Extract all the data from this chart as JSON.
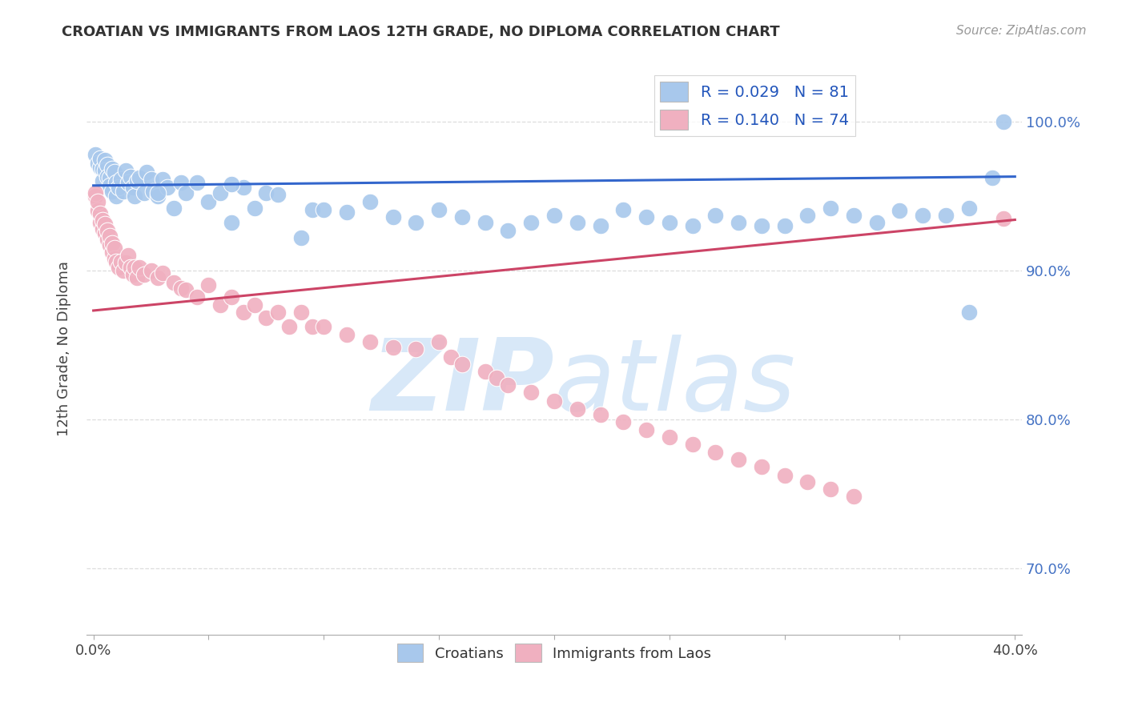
{
  "title": "CROATIAN VS IMMIGRANTS FROM LAOS 12TH GRADE, NO DIPLOMA CORRELATION CHART",
  "source": "Source: ZipAtlas.com",
  "ylabel": "12th Grade, No Diploma",
  "yticks": [
    "100.0%",
    "90.0%",
    "80.0%",
    "70.0%"
  ],
  "ytick_vals": [
    1.0,
    0.9,
    0.8,
    0.7
  ],
  "legend_blue_r": "R = 0.029",
  "legend_blue_n": "N = 81",
  "legend_pink_r": "R = 0.140",
  "legend_pink_n": "N = 74",
  "blue_color": "#A8C8EC",
  "pink_color": "#F0B0C0",
  "line_blue_color": "#3366CC",
  "line_pink_color": "#CC4466",
  "watermark_zip": "ZIP",
  "watermark_atlas": "atlas",
  "watermark_color": "#D8E8F8",
  "blue_scatter_x": [
    0.001,
    0.002,
    0.003,
    0.003,
    0.004,
    0.004,
    0.005,
    0.005,
    0.006,
    0.006,
    0.007,
    0.007,
    0.008,
    0.008,
    0.009,
    0.01,
    0.01,
    0.011,
    0.012,
    0.013,
    0.014,
    0.015,
    0.016,
    0.017,
    0.018,
    0.019,
    0.02,
    0.022,
    0.023,
    0.025,
    0.026,
    0.028,
    0.03,
    0.032,
    0.035,
    0.038,
    0.04,
    0.045,
    0.05,
    0.055,
    0.06,
    0.065,
    0.07,
    0.075,
    0.08,
    0.09,
    0.095,
    0.1,
    0.11,
    0.12,
    0.13,
    0.14,
    0.15,
    0.16,
    0.17,
    0.18,
    0.19,
    0.2,
    0.21,
    0.22,
    0.23,
    0.24,
    0.25,
    0.26,
    0.27,
    0.28,
    0.29,
    0.3,
    0.31,
    0.32,
    0.33,
    0.34,
    0.35,
    0.36,
    0.37,
    0.38,
    0.39,
    0.395,
    0.028,
    0.06,
    0.38
  ],
  "blue_scatter_y": [
    0.978,
    0.972,
    0.969,
    0.975,
    0.968,
    0.96,
    0.974,
    0.967,
    0.971,
    0.963,
    0.962,
    0.957,
    0.968,
    0.953,
    0.966,
    0.959,
    0.95,
    0.956,
    0.961,
    0.953,
    0.967,
    0.959,
    0.963,
    0.956,
    0.95,
    0.96,
    0.962,
    0.952,
    0.966,
    0.961,
    0.953,
    0.95,
    0.961,
    0.956,
    0.942,
    0.959,
    0.952,
    0.959,
    0.946,
    0.952,
    0.932,
    0.956,
    0.942,
    0.952,
    0.951,
    0.922,
    0.941,
    0.941,
    0.939,
    0.946,
    0.936,
    0.932,
    0.941,
    0.936,
    0.932,
    0.927,
    0.932,
    0.937,
    0.932,
    0.93,
    0.941,
    0.936,
    0.932,
    0.93,
    0.937,
    0.932,
    0.93,
    0.93,
    0.937,
    0.942,
    0.937,
    0.932,
    0.94,
    0.937,
    0.937,
    0.942,
    0.962,
    1.0,
    0.952,
    0.958,
    0.872
  ],
  "pink_scatter_x": [
    0.001,
    0.001,
    0.002,
    0.002,
    0.003,
    0.003,
    0.004,
    0.004,
    0.005,
    0.005,
    0.006,
    0.006,
    0.007,
    0.007,
    0.008,
    0.008,
    0.009,
    0.009,
    0.01,
    0.011,
    0.012,
    0.013,
    0.014,
    0.015,
    0.016,
    0.017,
    0.018,
    0.019,
    0.02,
    0.022,
    0.025,
    0.028,
    0.03,
    0.035,
    0.038,
    0.04,
    0.045,
    0.05,
    0.055,
    0.06,
    0.065,
    0.07,
    0.075,
    0.08,
    0.085,
    0.09,
    0.095,
    0.1,
    0.11,
    0.12,
    0.13,
    0.14,
    0.15,
    0.155,
    0.16,
    0.17,
    0.175,
    0.18,
    0.19,
    0.2,
    0.21,
    0.22,
    0.23,
    0.24,
    0.25,
    0.26,
    0.27,
    0.28,
    0.29,
    0.3,
    0.31,
    0.32,
    0.33,
    0.395
  ],
  "pink_scatter_y": [
    0.95,
    0.952,
    0.94,
    0.946,
    0.932,
    0.938,
    0.928,
    0.934,
    0.925,
    0.931,
    0.921,
    0.927,
    0.917,
    0.923,
    0.912,
    0.918,
    0.908,
    0.915,
    0.906,
    0.902,
    0.906,
    0.9,
    0.905,
    0.91,
    0.902,
    0.897,
    0.902,
    0.895,
    0.902,
    0.897,
    0.9,
    0.895,
    0.898,
    0.892,
    0.888,
    0.887,
    0.882,
    0.89,
    0.877,
    0.882,
    0.872,
    0.877,
    0.868,
    0.872,
    0.862,
    0.872,
    0.862,
    0.862,
    0.857,
    0.852,
    0.848,
    0.847,
    0.852,
    0.842,
    0.837,
    0.832,
    0.828,
    0.823,
    0.818,
    0.812,
    0.807,
    0.803,
    0.798,
    0.793,
    0.788,
    0.783,
    0.778,
    0.773,
    0.768,
    0.762,
    0.758,
    0.753,
    0.748,
    0.935
  ],
  "blue_line_x": [
    0.0,
    0.4
  ],
  "blue_line_y": [
    0.957,
    0.963
  ],
  "pink_line_x": [
    0.0,
    0.4
  ],
  "pink_line_y": [
    0.873,
    0.934
  ],
  "xlim": [
    -0.003,
    0.403
  ],
  "ylim": [
    0.655,
    1.04
  ],
  "x_ticks": [
    0.0,
    0.05,
    0.1,
    0.15,
    0.2,
    0.25,
    0.3,
    0.35,
    0.4
  ],
  "background_color": "#FFFFFF",
  "grid_color": "#DDDDDD"
}
